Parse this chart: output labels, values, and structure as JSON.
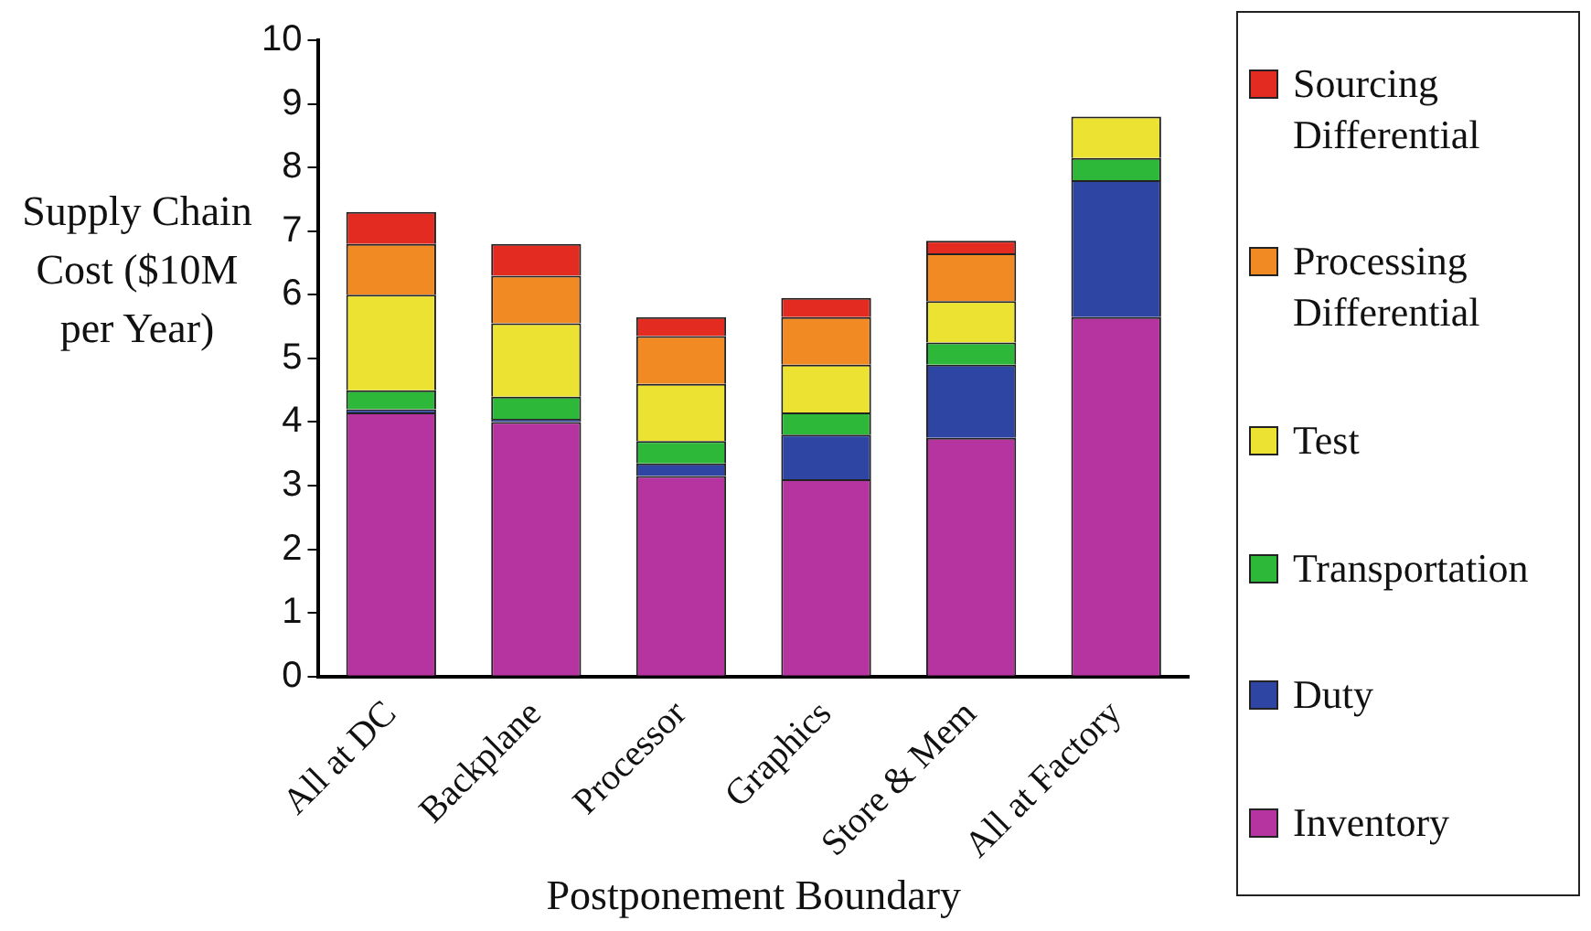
{
  "chart_data": {
    "type": "bar",
    "stacked": true,
    "xlabel": "Postponement Boundary",
    "ylabel": "Supply Chain Cost ($10M per Year)",
    "categories": [
      "All at DC",
      "Backplane",
      "Processor",
      "Graphics",
      "Store & Mem",
      "All at Factory"
    ],
    "ylim": [
      0,
      10
    ],
    "yticks": [
      0,
      1,
      2,
      3,
      4,
      5,
      6,
      7,
      8,
      9,
      10
    ],
    "grid": false,
    "legend": "right",
    "series": [
      {
        "name": "Inventory",
        "color": "#b5349f",
        "values": [
          4.15,
          4.0,
          3.15,
          3.1,
          3.75,
          5.65
        ]
      },
      {
        "name": "Duty",
        "color": "#2f45a3",
        "values": [
          0.05,
          0.05,
          0.2,
          0.7,
          1.15,
          2.15
        ]
      },
      {
        "name": "Transportation",
        "color": "#2eb83a",
        "values": [
          0.3,
          0.35,
          0.35,
          0.35,
          0.35,
          0.35
        ]
      },
      {
        "name": "Test",
        "color": "#ece232",
        "values": [
          1.5,
          1.15,
          0.9,
          0.75,
          0.65,
          0.65
        ]
      },
      {
        "name": "Processing Differential",
        "color": "#f28a24",
        "values": [
          0.8,
          0.75,
          0.75,
          0.75,
          0.75,
          0
        ]
      },
      {
        "name": "Sourcing Differential",
        "color": "#e32b22",
        "values": [
          0.5,
          0.5,
          0.3,
          0.3,
          0.2,
          0
        ]
      }
    ]
  }
}
